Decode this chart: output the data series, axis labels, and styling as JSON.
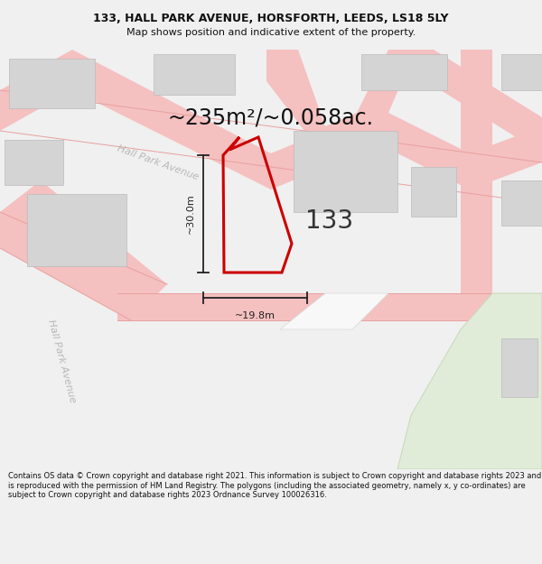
{
  "title_line1": "133, HALL PARK AVENUE, HORSFORTH, LEEDS, LS18 5LY",
  "title_line2": "Map shows position and indicative extent of the property.",
  "area_text": "~235m²/~0.058ac.",
  "label_133": "133",
  "dim_vertical": "~30.0m",
  "dim_horizontal": "~19.8m",
  "street_label1": "Hall Park Avenue",
  "street_label2": "Hall Park Avenue",
  "footer_text": "Contains OS data © Crown copyright and database right 2021. This information is subject to Crown copyright and database rights 2023 and is reproduced with the permission of HM Land Registry. The polygons (including the associated geometry, namely x, y co-ordinates) are subject to Crown copyright and database rights 2023 Ordnance Survey 100026316.",
  "bg_color": "#f0f0f0",
  "map_bg": "#ffffff",
  "road_color": "#f5c0c0",
  "building_color": "#d4d4d4",
  "plot_color": "#cc0000",
  "dim_line_color": "#222222",
  "green_area_color": "#e0ebd8",
  "white_path_color": "#f8f8f8"
}
